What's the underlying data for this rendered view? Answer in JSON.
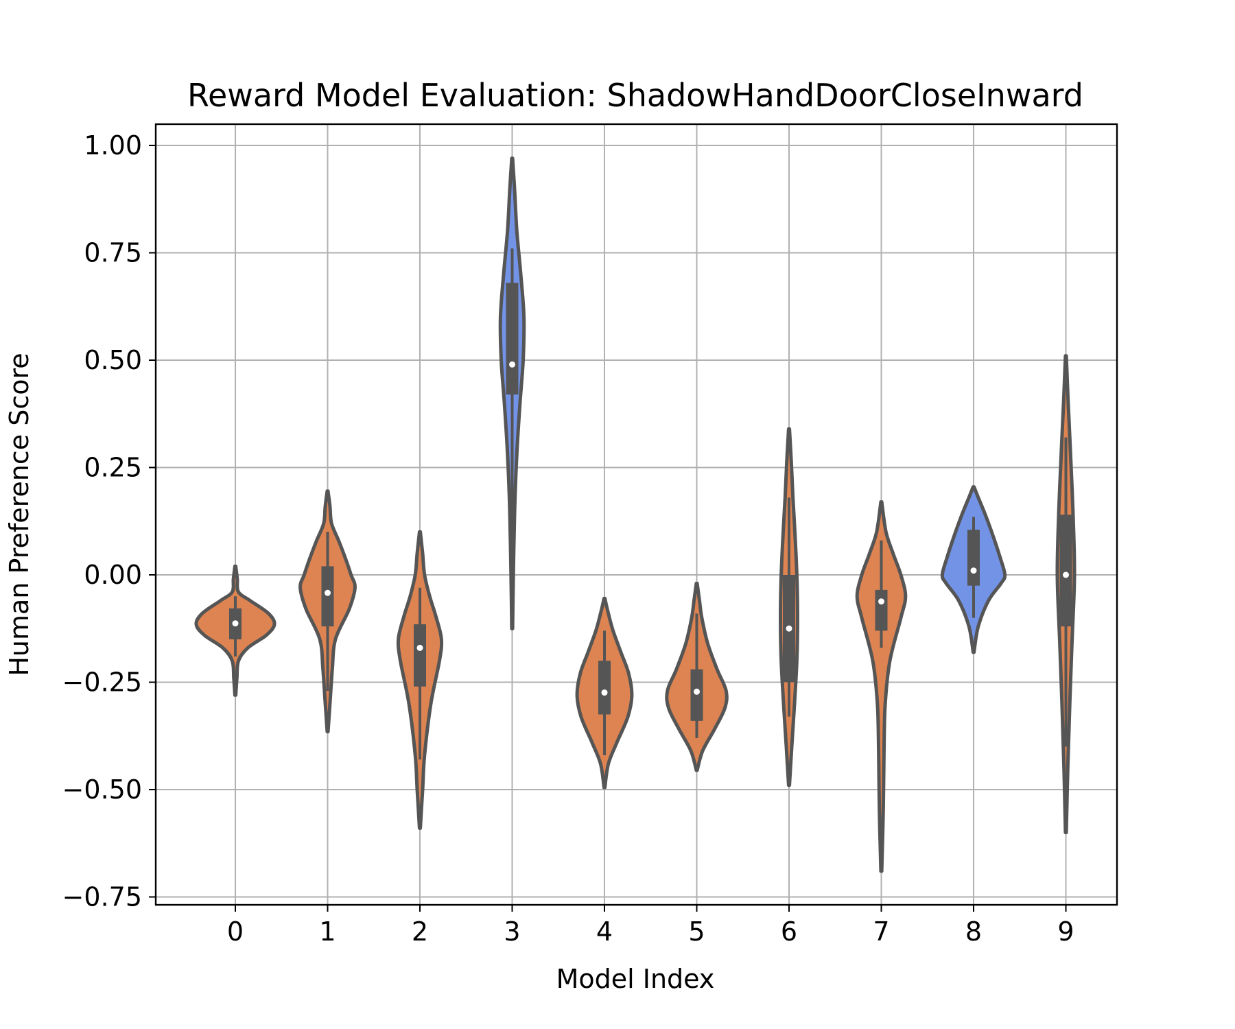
{
  "chart_data": {
    "type": "violin",
    "title": "Reward Model Evaluation: ShadowHandDoorCloseInward",
    "xlabel": "Model Index",
    "ylabel": "Human Preference Score",
    "ylim": [
      -0.77,
      1.05
    ],
    "yticks": [
      1.0,
      0.75,
      0.5,
      0.25,
      0.0,
      -0.25,
      -0.5,
      -0.75
    ],
    "ytick_labels": [
      "1.00",
      "0.75",
      "0.50",
      "0.25",
      "0.00",
      "−0.25",
      "−0.50",
      "−0.75"
    ],
    "categories": [
      "0",
      "1",
      "2",
      "3",
      "4",
      "5",
      "6",
      "7",
      "8",
      "9"
    ],
    "grid": true,
    "colors": {
      "orange": "#DD8452",
      "blue": "#7393E6",
      "box": "#555555",
      "outline": "#555555",
      "grid": "#B0B0B0"
    },
    "violins": [
      {
        "category": "0",
        "fill": "orange",
        "median": -0.113,
        "q1": -0.15,
        "q3": -0.078,
        "whisker_low": -0.19,
        "whisker_high": -0.05,
        "profile": [
          [
            -0.28,
            0.01
          ],
          [
            -0.24,
            0.04
          ],
          [
            -0.2,
            0.08
          ],
          [
            -0.17,
            0.32
          ],
          [
            -0.14,
            0.8
          ],
          [
            -0.115,
            1.0
          ],
          [
            -0.09,
            0.85
          ],
          [
            -0.06,
            0.38
          ],
          [
            -0.04,
            0.08
          ],
          [
            -0.01,
            0.05
          ],
          [
            0.02,
            0.01
          ]
        ]
      },
      {
        "category": "1",
        "fill": "orange",
        "median": -0.042,
        "q1": -0.12,
        "q3": 0.02,
        "whisker_low": -0.27,
        "whisker_high": 0.1,
        "profile": [
          [
            -0.365,
            0.01
          ],
          [
            -0.3,
            0.06
          ],
          [
            -0.22,
            0.12
          ],
          [
            -0.15,
            0.2
          ],
          [
            -0.08,
            0.55
          ],
          [
            -0.03,
            0.7
          ],
          [
            0.0,
            0.6
          ],
          [
            0.04,
            0.45
          ],
          [
            0.08,
            0.28
          ],
          [
            0.12,
            0.1
          ],
          [
            0.16,
            0.06
          ],
          [
            0.195,
            0.01
          ]
        ]
      },
      {
        "category": "2",
        "fill": "orange",
        "median": -0.17,
        "q1": -0.26,
        "q3": -0.115,
        "whisker_low": -0.43,
        "whisker_high": -0.03,
        "profile": [
          [
            -0.59,
            0.01
          ],
          [
            -0.5,
            0.07
          ],
          [
            -0.42,
            0.12
          ],
          [
            -0.3,
            0.28
          ],
          [
            -0.2,
            0.5
          ],
          [
            -0.15,
            0.55
          ],
          [
            -0.1,
            0.42
          ],
          [
            -0.05,
            0.25
          ],
          [
            0.0,
            0.12
          ],
          [
            0.05,
            0.07
          ],
          [
            0.1,
            0.01
          ]
        ]
      },
      {
        "category": "3",
        "fill": "blue",
        "median": 0.49,
        "q1": 0.42,
        "q3": 0.68,
        "whisker_low": 0.08,
        "whisker_high": 0.76,
        "profile": [
          [
            -0.125,
            0.01
          ],
          [
            0.0,
            0.03
          ],
          [
            0.1,
            0.05
          ],
          [
            0.2,
            0.08
          ],
          [
            0.3,
            0.13
          ],
          [
            0.4,
            0.2
          ],
          [
            0.5,
            0.28
          ],
          [
            0.6,
            0.3
          ],
          [
            0.7,
            0.22
          ],
          [
            0.8,
            0.12
          ],
          [
            0.9,
            0.06
          ],
          [
            0.97,
            0.01
          ]
        ]
      },
      {
        "category": "4",
        "fill": "orange",
        "median": -0.274,
        "q1": -0.325,
        "q3": -0.2,
        "whisker_low": -0.42,
        "whisker_high": -0.13,
        "profile": [
          [
            -0.495,
            0.01
          ],
          [
            -0.44,
            0.1
          ],
          [
            -0.39,
            0.32
          ],
          [
            -0.33,
            0.6
          ],
          [
            -0.28,
            0.7
          ],
          [
            -0.23,
            0.62
          ],
          [
            -0.18,
            0.42
          ],
          [
            -0.13,
            0.22
          ],
          [
            -0.09,
            0.1
          ],
          [
            -0.055,
            0.01
          ]
        ]
      },
      {
        "category": "5",
        "fill": "orange",
        "median": -0.272,
        "q1": -0.34,
        "q3": -0.22,
        "whisker_low": -0.38,
        "whisker_high": -0.09,
        "profile": [
          [
            -0.455,
            0.01
          ],
          [
            -0.41,
            0.15
          ],
          [
            -0.36,
            0.45
          ],
          [
            -0.31,
            0.72
          ],
          [
            -0.27,
            0.75
          ],
          [
            -0.22,
            0.52
          ],
          [
            -0.16,
            0.28
          ],
          [
            -0.1,
            0.13
          ],
          [
            -0.06,
            0.07
          ],
          [
            -0.02,
            0.01
          ]
        ]
      },
      {
        "category": "6",
        "fill": "orange",
        "median": -0.125,
        "q1": -0.25,
        "q3": 0.0,
        "whisker_low": -0.33,
        "whisker_high": 0.18,
        "profile": [
          [
            -0.49,
            0.01
          ],
          [
            -0.4,
            0.07
          ],
          [
            -0.3,
            0.14
          ],
          [
            -0.2,
            0.2
          ],
          [
            -0.1,
            0.22
          ],
          [
            0.0,
            0.2
          ],
          [
            0.1,
            0.15
          ],
          [
            0.18,
            0.1
          ],
          [
            0.26,
            0.06
          ],
          [
            0.34,
            0.01
          ]
        ]
      },
      {
        "category": "7",
        "fill": "orange",
        "median": -0.062,
        "q1": -0.13,
        "q3": -0.035,
        "whisker_low": -0.17,
        "whisker_high": 0.08,
        "profile": [
          [
            -0.69,
            0.01
          ],
          [
            -0.55,
            0.05
          ],
          [
            -0.4,
            0.07
          ],
          [
            -0.3,
            0.1
          ],
          [
            -0.2,
            0.22
          ],
          [
            -0.1,
            0.5
          ],
          [
            -0.05,
            0.62
          ],
          [
            0.0,
            0.5
          ],
          [
            0.05,
            0.3
          ],
          [
            0.1,
            0.12
          ],
          [
            0.17,
            0.01
          ]
        ]
      },
      {
        "category": "8",
        "fill": "blue",
        "median": 0.01,
        "q1": -0.025,
        "q3": 0.105,
        "whisker_low": -0.1,
        "whisker_high": 0.135,
        "profile": [
          [
            -0.18,
            0.01
          ],
          [
            -0.12,
            0.12
          ],
          [
            -0.06,
            0.38
          ],
          [
            -0.02,
            0.7
          ],
          [
            0.0,
            0.8
          ],
          [
            0.04,
            0.68
          ],
          [
            0.09,
            0.5
          ],
          [
            0.14,
            0.3
          ],
          [
            0.18,
            0.12
          ],
          [
            0.205,
            0.01
          ]
        ]
      },
      {
        "category": "9",
        "fill": "orange",
        "median": 0.0,
        "q1": -0.12,
        "q3": 0.14,
        "whisker_low": -0.4,
        "whisker_high": 0.32,
        "profile": [
          [
            -0.6,
            0.01
          ],
          [
            -0.45,
            0.05
          ],
          [
            -0.3,
            0.1
          ],
          [
            -0.15,
            0.16
          ],
          [
            0.0,
            0.22
          ],
          [
            0.15,
            0.18
          ],
          [
            0.3,
            0.11
          ],
          [
            0.4,
            0.06
          ],
          [
            0.51,
            0.01
          ]
        ]
      }
    ]
  }
}
